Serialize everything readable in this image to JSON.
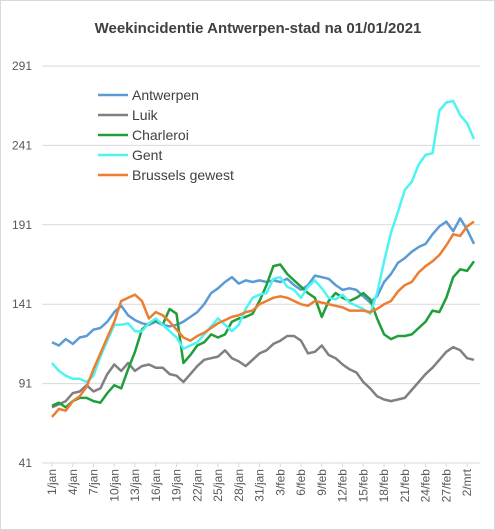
{
  "chart_data": {
    "type": "line",
    "title": "Weekincidentie  Antwerpen-stad  na 01/01/2021",
    "categories": [
      "1/jan",
      null,
      null,
      "4/jan",
      null,
      null,
      "7/jan",
      null,
      null,
      "10/jan",
      null,
      null,
      "13/jan",
      null,
      null,
      "16/jan",
      null,
      null,
      "19/jan",
      null,
      null,
      "22/jan",
      null,
      null,
      "25/jan",
      null,
      null,
      "28/jan",
      null,
      null,
      "31/jan",
      null,
      null,
      "3/feb",
      null,
      null,
      "6/feb",
      null,
      null,
      "9/feb",
      null,
      null,
      "12/feb",
      null,
      null,
      "15/feb",
      null,
      null,
      "18/feb",
      null,
      null,
      "21/feb",
      null,
      null,
      "24/feb",
      null,
      null,
      "27/feb",
      null,
      null,
      "2/mrt",
      null
    ],
    "series": [
      {
        "name": "Antwerpen",
        "color": "#5b9bd5",
        "values": [
          117,
          115,
          119,
          116,
          120,
          121,
          125,
          126,
          130,
          136,
          140,
          134,
          131,
          129,
          128,
          130,
          128,
          127,
          128,
          130,
          133,
          136,
          141,
          148,
          151,
          155,
          158,
          154,
          156,
          155,
          156,
          155,
          156,
          155,
          157,
          153,
          150,
          153,
          159,
          158,
          157,
          153,
          150,
          151,
          150,
          146,
          142,
          146,
          155,
          160,
          167,
          170,
          174,
          177,
          179,
          185,
          190,
          193,
          187,
          195,
          188,
          179
        ]
      },
      {
        "name": "Luik",
        "color": "#808080",
        "values": [
          76,
          78,
          80,
          85,
          86,
          90,
          86,
          88,
          97,
          103,
          99,
          104,
          99,
          102,
          103,
          101,
          101,
          97,
          96,
          92,
          97,
          102,
          106,
          107,
          108,
          112,
          107,
          105,
          102,
          106,
          110,
          112,
          116,
          118,
          121,
          121,
          118,
          110,
          111,
          115,
          109,
          107,
          103,
          100,
          98,
          92,
          88,
          83,
          81,
          80,
          81,
          82,
          87,
          92,
          97,
          101,
          106,
          111,
          114,
          112,
          107,
          106
        ]
      },
      {
        "name": "Charleroi",
        "color": "#1f9e3a",
        "values": [
          77,
          79,
          76,
          80,
          82,
          82,
          80,
          79,
          85,
          90,
          88,
          100,
          111,
          125,
          129,
          131,
          128,
          138,
          135,
          104,
          109,
          115,
          117,
          122,
          120,
          122,
          130,
          132,
          133,
          135,
          143,
          153,
          165,
          166,
          160,
          156,
          152,
          148,
          145,
          133,
          143,
          148,
          145,
          143,
          145,
          148,
          144,
          132,
          122,
          119,
          121,
          121,
          122,
          126,
          130,
          137,
          136,
          145,
          158,
          163,
          162,
          168
        ]
      },
      {
        "name": "Gent",
        "color": "#4ff3f3",
        "values": [
          104,
          99,
          96,
          94,
          94,
          92,
          96,
          108,
          118,
          128,
          128,
          129,
          124,
          124,
          129,
          132,
          128,
          124,
          120,
          113,
          115,
          117,
          122,
          127,
          132,
          128,
          124,
          128,
          138,
          145,
          147,
          148,
          157,
          158,
          152,
          150,
          145,
          152,
          156,
          151,
          145,
          144,
          147,
          142,
          140,
          138,
          135,
          148,
          168,
          186,
          199,
          213,
          218,
          229,
          235,
          236,
          263,
          268,
          269,
          260,
          255,
          245
        ]
      },
      {
        "name": "Brussels gewest",
        "color": "#ed7d31",
        "values": [
          70,
          75,
          74,
          80,
          83,
          89,
          100,
          110,
          120,
          130,
          143,
          145,
          147,
          143,
          132,
          136,
          134,
          130,
          125,
          120,
          118,
          121,
          123,
          126,
          129,
          131,
          133,
          134,
          136,
          137,
          141,
          143,
          145,
          146,
          145,
          143,
          141,
          140,
          143,
          142,
          141,
          140,
          139,
          137,
          137,
          137,
          136,
          138,
          141,
          143,
          149,
          153,
          155,
          161,
          165,
          168,
          172,
          178,
          185,
          184,
          190,
          193
        ]
      }
    ],
    "ylim": [
      41,
      291
    ],
    "yticks": [
      41,
      91,
      141,
      191,
      241,
      291
    ],
    "grid": true,
    "legend": "upper-left"
  }
}
